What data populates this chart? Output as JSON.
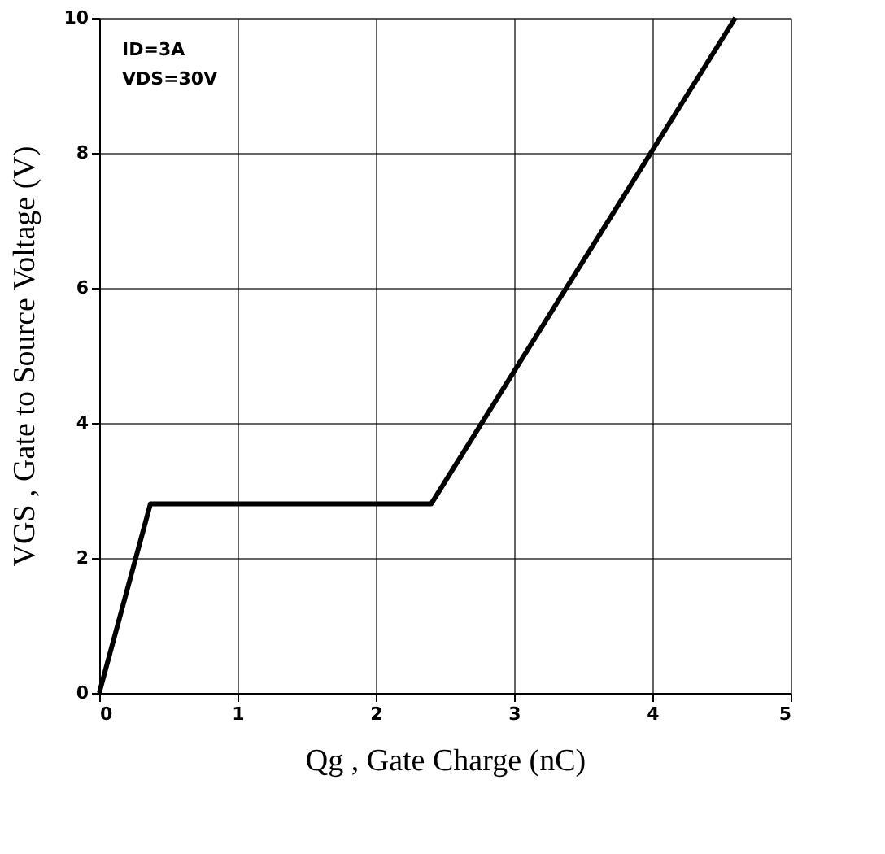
{
  "chart_data": {
    "type": "line",
    "xlabel": "Qg , Gate Charge (nC)",
    "ylabel": "VGS , Gate to Source Voltage (V)",
    "annotations": [
      "ID=3A",
      "VDS=30V"
    ],
    "series": [
      {
        "x": [
          0,
          0.37,
          2.4,
          4.6
        ],
        "values": [
          0,
          2.8,
          2.8,
          10
        ],
        "color": "#000000"
      }
    ],
    "xlim": [
      0,
      5
    ],
    "xticks": [
      0,
      1,
      2,
      3,
      4,
      5
    ],
    "ylim": [
      0,
      10
    ],
    "yticks": [
      0,
      2,
      4,
      6,
      8,
      10
    ],
    "grid": true,
    "marker": "none",
    "line_style": "solid"
  }
}
